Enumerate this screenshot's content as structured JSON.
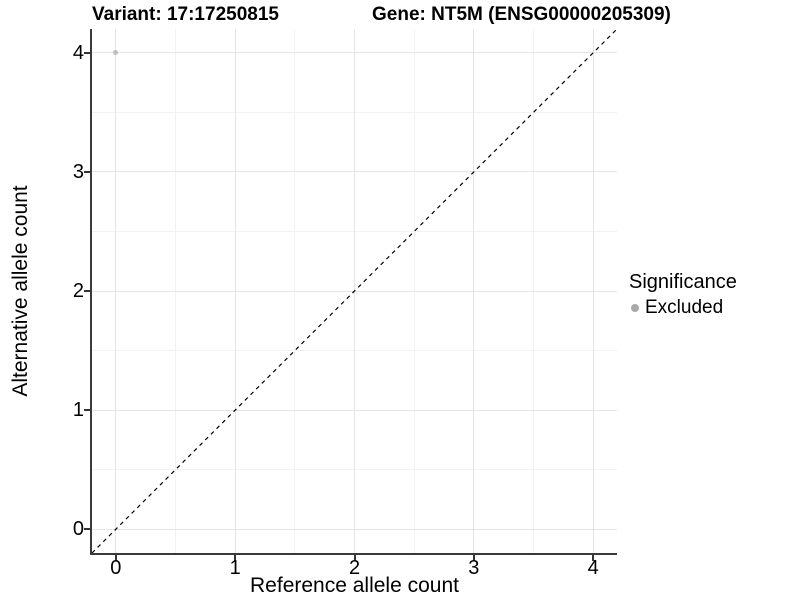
{
  "chart_data": {
    "type": "scatter",
    "title_left": "Variant: 17:17250815",
    "title_right": "Gene: NT5M (ENSG00000205309)",
    "xlabel": "Reference allele count",
    "ylabel": "Alternative allele count",
    "xlim": [
      -0.2,
      4.2
    ],
    "ylim": [
      -0.2,
      4.2
    ],
    "xticks": [
      0,
      1,
      2,
      3,
      4
    ],
    "yticks": [
      0,
      1,
      2,
      3,
      4
    ],
    "minor_gridlines": [
      0.5,
      1.5,
      2.5,
      3.5
    ],
    "grid": "white panel with light-gray major and fainter minor gridlines",
    "series": [
      {
        "name": "Excluded",
        "color": "#bdbdbd",
        "points": [
          {
            "x": 0,
            "y": 4
          }
        ]
      }
    ],
    "reference_line": {
      "type": "identity",
      "equation": "y = x",
      "style": "dashed",
      "color": "#000000",
      "from": -0.2,
      "to": 4.2
    },
    "legend": {
      "title": "Significance",
      "position": "right-middle",
      "entries": [
        {
          "label": "Excluded",
          "marker_color": "#a9a9a9"
        }
      ]
    }
  },
  "colors": {
    "background": "#ffffff",
    "axis_line": "#3a3a3a",
    "major_grid": "#e5e5e5",
    "minor_grid": "#f2f2f2",
    "text": "#000000"
  }
}
